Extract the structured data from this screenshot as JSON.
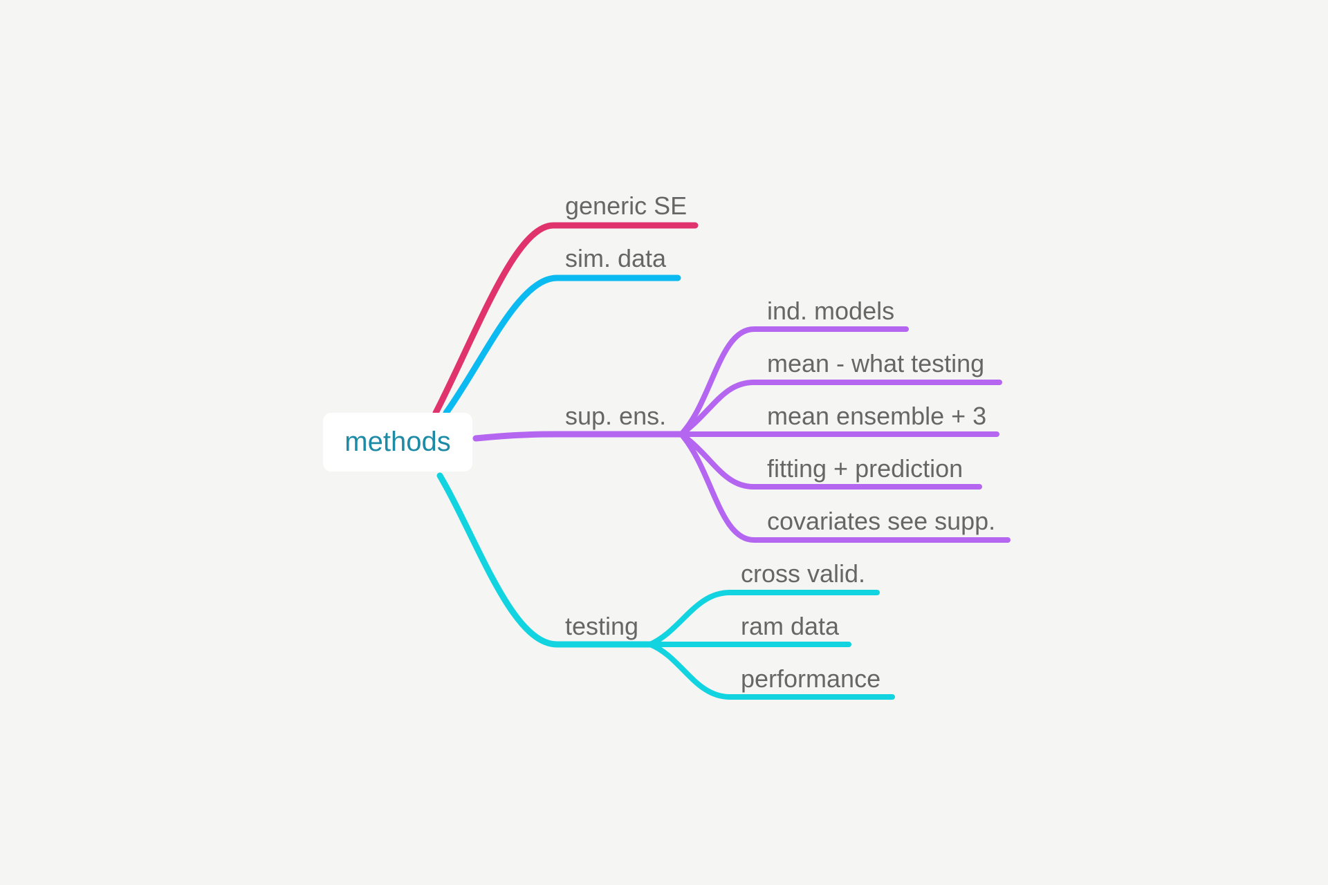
{
  "root": {
    "label": "methods",
    "color": "#1d8ba6"
  },
  "branches": [
    {
      "label": "generic SE",
      "color": "#e0336e",
      "children": []
    },
    {
      "label": "sim. data",
      "color": "#0cbaf2",
      "children": []
    },
    {
      "label": "sup. ens.",
      "color": "#b466f0",
      "children": [
        {
          "label": "ind. models"
        },
        {
          "label": "mean - what testing"
        },
        {
          "label": "mean ensemble + 3"
        },
        {
          "label": "fitting + prediction"
        },
        {
          "label": "covariates see supp."
        }
      ]
    },
    {
      "label": "testing",
      "color": "#12d4e0",
      "children": [
        {
          "label": "cross valid."
        },
        {
          "label": "ram data"
        },
        {
          "label": "performance"
        }
      ]
    }
  ]
}
